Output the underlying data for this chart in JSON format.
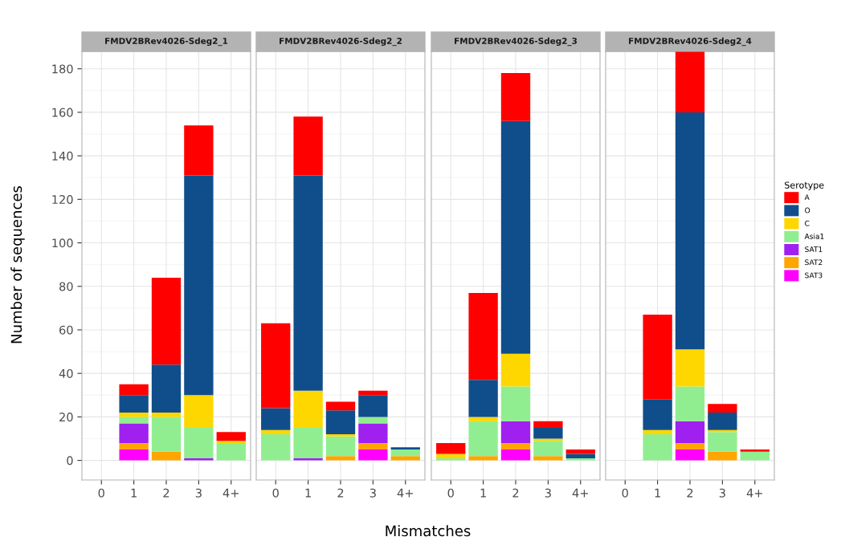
{
  "chart_data": [
    {
      "type": "bar",
      "stacked": true,
      "title": "FMDV2BRev4026-Sdeg2_1",
      "ylabel": "Number of sequences",
      "categories": [
        "0",
        "1",
        "2",
        "3",
        "4+"
      ],
      "ylim": [
        -9,
        188
      ],
      "yticks": [
        0,
        20,
        40,
        60,
        80,
        100,
        120,
        140,
        160,
        180
      ],
      "grid": true,
      "series": [
        {
          "color": "#ff00ff",
          "values": [
            0,
            5,
            0,
            0,
            0
          ]
        },
        {
          "color": "#ffa500",
          "values": [
            0,
            3,
            4,
            0,
            0
          ]
        },
        {
          "color": "#a020f0",
          "values": [
            0,
            9,
            0,
            1,
            0
          ]
        },
        {
          "color": "#90ee90",
          "values": [
            0,
            3,
            16,
            14,
            8
          ]
        },
        {
          "color": "#ffd700",
          "values": [
            0,
            2,
            2,
            15,
            1
          ]
        },
        {
          "color": "#104e8b",
          "values": [
            0,
            8,
            22,
            101,
            0
          ]
        },
        {
          "color": "#ff0000",
          "values": [
            0,
            5,
            40,
            23,
            4
          ]
        }
      ]
    },
    {
      "type": "bar",
      "stacked": true,
      "title": "FMDV2BRev4026-Sdeg2_2",
      "xlabel": "Mismatches",
      "categories": [
        "0",
        "1",
        "2",
        "3",
        "4+"
      ],
      "ylim": [
        -9,
        188
      ],
      "yticks": [
        0,
        20,
        40,
        60,
        80,
        100,
        120,
        140,
        160,
        180
      ],
      "grid": true,
      "tick_labels": "x",
      "series": [
        {
          "color": "#ff00ff",
          "values": [
            0,
            0,
            0,
            5,
            0
          ]
        },
        {
          "color": "#ffa500",
          "values": [
            0,
            0,
            2,
            3,
            2
          ]
        },
        {
          "color": "#a020f0",
          "values": [
            0,
            1,
            0,
            9,
            0
          ]
        },
        {
          "color": "#90ee90",
          "values": [
            12,
            14,
            9,
            3,
            3
          ]
        },
        {
          "color": "#ffd700",
          "values": [
            2,
            17,
            1,
            0,
            0
          ]
        },
        {
          "color": "#104e8b",
          "values": [
            10,
            99,
            11,
            10,
            1
          ]
        },
        {
          "color": "#ff0000",
          "values": [
            39,
            27,
            4,
            2,
            0
          ]
        }
      ]
    },
    {
      "type": "bar",
      "stacked": true,
      "title": "FMDV2BRev4026-Sdeg2_3",
      "categories": [
        "0",
        "1",
        "2",
        "3",
        "4+"
      ],
      "ylim": [
        -9,
        188
      ],
      "yticks": [
        0,
        20,
        40,
        60,
        80,
        100,
        120,
        140,
        160,
        180
      ],
      "grid": true,
      "tick_labels": "x",
      "series": [
        {
          "color": "#ff00ff",
          "values": [
            0,
            0,
            5,
            0,
            0
          ]
        },
        {
          "color": "#ffa500",
          "values": [
            0,
            2,
            3,
            2,
            0
          ]
        },
        {
          "color": "#a020f0",
          "values": [
            0,
            0,
            10,
            0,
            0
          ]
        },
        {
          "color": "#90ee90",
          "values": [
            1,
            16,
            16,
            7,
            1
          ]
        },
        {
          "color": "#ffd700",
          "values": [
            2,
            2,
            15,
            1,
            0
          ]
        },
        {
          "color": "#104e8b",
          "values": [
            0,
            17,
            107,
            5,
            2
          ]
        },
        {
          "color": "#ff0000",
          "values": [
            5,
            40,
            22,
            3,
            2
          ]
        }
      ]
    },
    {
      "type": "bar",
      "stacked": true,
      "title": "FMDV2BRev4026-Sdeg2_4",
      "legend_title": "Serotype",
      "categories": [
        "0",
        "1",
        "2",
        "3",
        "4+"
      ],
      "ylim": [
        -9,
        188
      ],
      "yticks": [
        0,
        20,
        40,
        60,
        80,
        100,
        120,
        140,
        160,
        180
      ],
      "grid": true,
      "legend": "right",
      "tick_labels": "x",
      "series": [
        {
          "name": "SAT3",
          "color": "#ff00ff",
          "values": [
            0,
            0,
            5,
            0,
            0
          ]
        },
        {
          "name": "SAT2",
          "color": "#ffa500",
          "values": [
            0,
            0,
            3,
            4,
            0
          ]
        },
        {
          "name": "SAT1",
          "color": "#a020f0",
          "values": [
            0,
            0,
            10,
            0,
            0
          ]
        },
        {
          "name": "Asia1",
          "color": "#90ee90",
          "values": [
            0,
            12,
            16,
            9,
            4
          ]
        },
        {
          "name": "C",
          "color": "#ffd700",
          "values": [
            0,
            2,
            17,
            1,
            0
          ]
        },
        {
          "name": "O",
          "color": "#104e8b",
          "values": [
            0,
            14,
            109,
            8,
            0
          ]
        },
        {
          "name": "A",
          "color": "#ff0000",
          "values": [
            0,
            39,
            28,
            4,
            1
          ]
        }
      ]
    }
  ]
}
